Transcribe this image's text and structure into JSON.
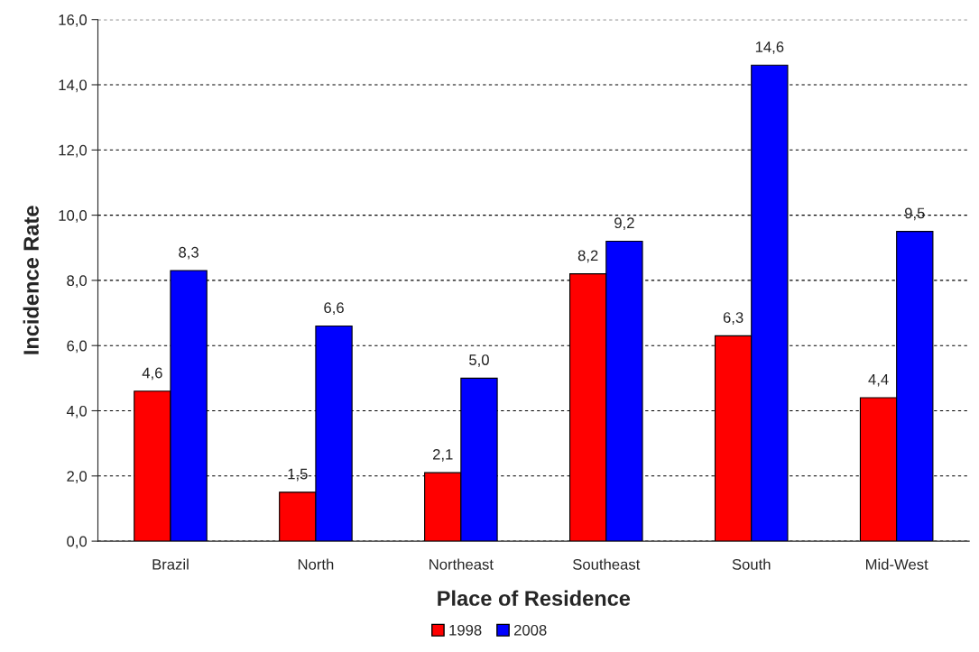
{
  "chart_data": {
    "type": "bar",
    "xlabel": "Place of Residence",
    "ylabel": "Incidence Rate",
    "categories": [
      "Brazil",
      "North",
      "Northeast",
      "Southeast",
      "South",
      "Mid-West"
    ],
    "series": [
      {
        "name": "1998",
        "color": "#ff0000",
        "values": [
          4.6,
          1.5,
          2.1,
          8.2,
          6.3,
          4.4
        ],
        "value_labels": [
          "4,6",
          "1,5",
          "2,1",
          "8,2",
          "6,3",
          "4,4"
        ]
      },
      {
        "name": "2008",
        "color": "#0000ff",
        "values": [
          8.3,
          6.6,
          5.0,
          9.2,
          14.6,
          9.5
        ],
        "value_labels": [
          "8,3",
          "6,6",
          "5,0",
          "9,2",
          "14,6",
          "9,5"
        ]
      }
    ],
    "ylim": [
      0,
      16
    ],
    "yticks": [
      {
        "value": 0,
        "label": "0,0"
      },
      {
        "value": 2,
        "label": "2,0"
      },
      {
        "value": 4,
        "label": "4,0"
      },
      {
        "value": 6,
        "label": "6,0"
      },
      {
        "value": 8,
        "label": "8,0"
      },
      {
        "value": 10,
        "label": "10,0"
      },
      {
        "value": 12,
        "label": "12,0"
      },
      {
        "value": 14,
        "label": "14,0"
      },
      {
        "value": 16,
        "label": "16,0"
      }
    ],
    "grid": "y",
    "legend": "bottom"
  }
}
